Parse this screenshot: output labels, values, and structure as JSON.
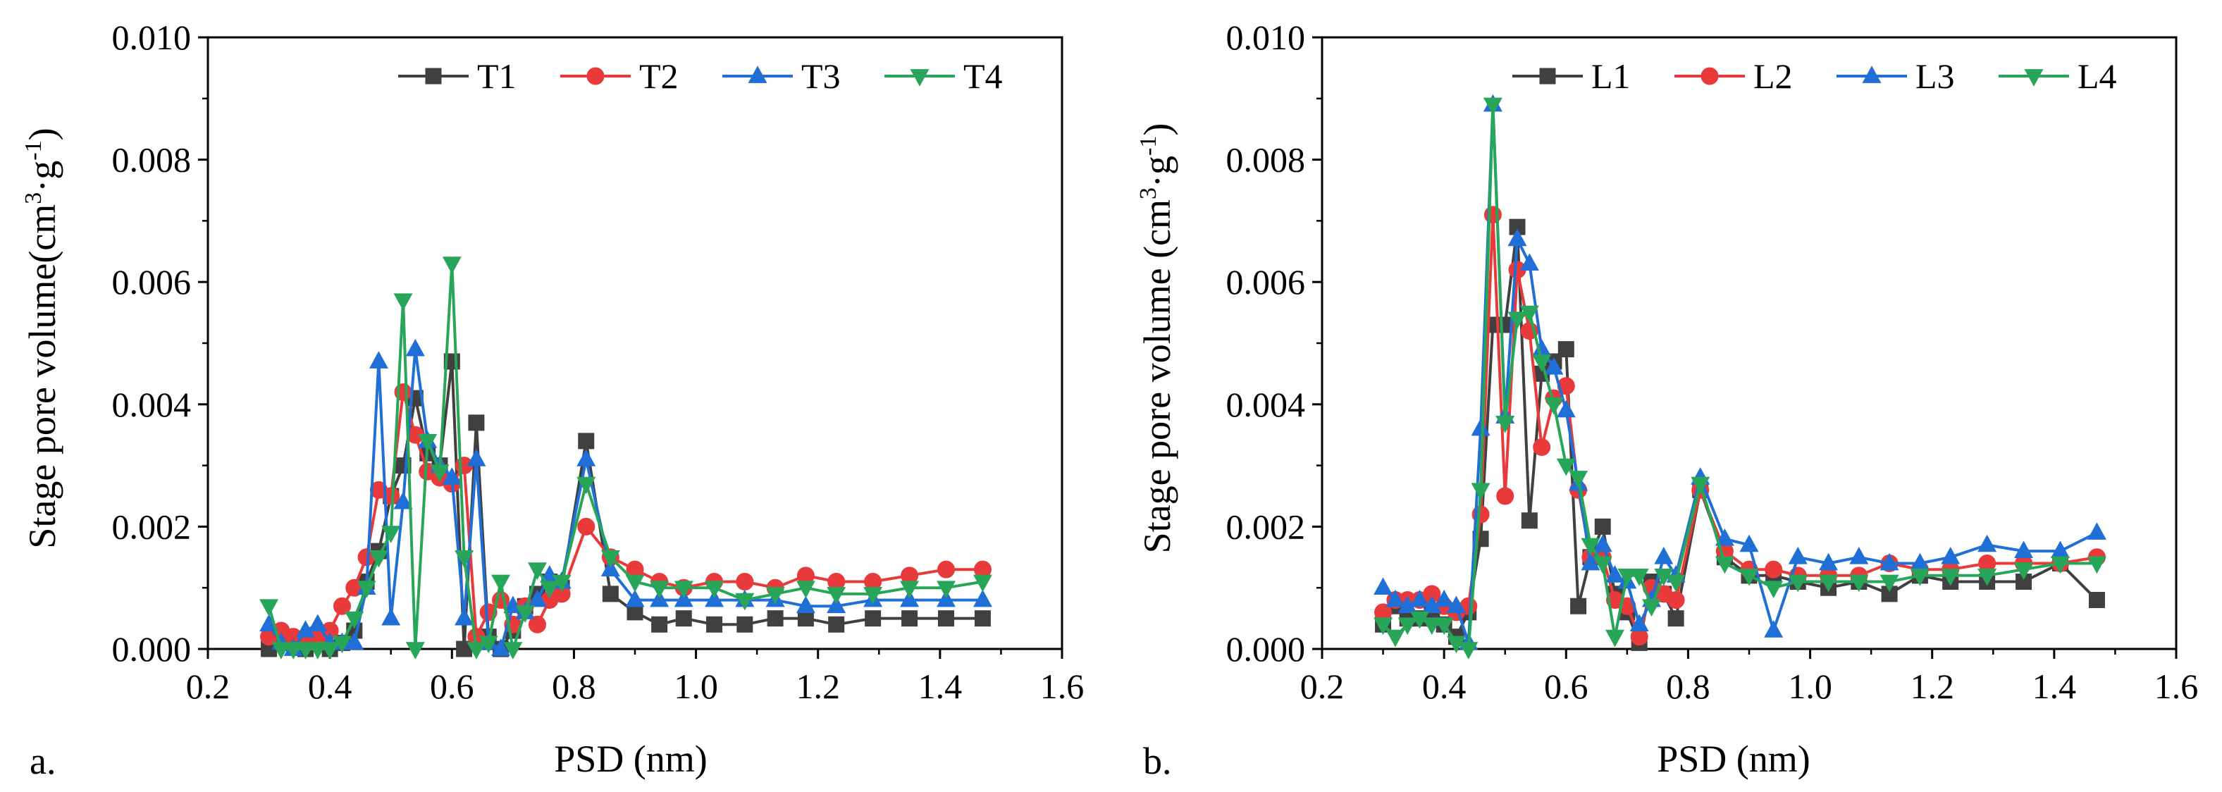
{
  "figure_labels": {
    "a": "a.",
    "b": "b."
  },
  "colors": {
    "s1": "#404040",
    "s2": "#e83a3a",
    "s3": "#1f6fd6",
    "s4": "#27a65a"
  },
  "chart_data": [
    {
      "type": "line",
      "panel": "a.",
      "title": "",
      "xlabel": "PSD (nm)",
      "ylabel_main": "Stage pore volume(cm",
      "ylabel_sup1": "3",
      "ylabel_mid": "·g",
      "ylabel_sup2": "-1",
      "ylabel_end": ")",
      "xlim": [
        0.2,
        1.6
      ],
      "ylim": [
        0,
        0.01
      ],
      "xticks": [
        0.2,
        0.4,
        0.6,
        0.8,
        1.0,
        1.2,
        1.4,
        1.6
      ],
      "xtick_labels": [
        "0.2",
        "0.4",
        "0.6",
        "0.8",
        "1.0",
        "1.2",
        "1.4",
        "1.6"
      ],
      "yticks": [
        0,
        0.002,
        0.004,
        0.006,
        0.008,
        0.01
      ],
      "ytick_labels": [
        "0.000",
        "0.002",
        "0.004",
        "0.006",
        "0.008",
        "0.010"
      ],
      "legend_position": "top-right",
      "series": [
        {
          "name": "T1",
          "marker": "square",
          "color": "#404040",
          "x": [
            0.3,
            0.32,
            0.34,
            0.36,
            0.38,
            0.4,
            0.42,
            0.44,
            0.46,
            0.48,
            0.5,
            0.52,
            0.54,
            0.56,
            0.58,
            0.6,
            0.62,
            0.64,
            0.66,
            0.68,
            0.7,
            0.72,
            0.74,
            0.76,
            0.78,
            0.82,
            0.86,
            0.9,
            0.94,
            0.98,
            1.03,
            1.08,
            1.13,
            1.18,
            1.23,
            1.29,
            1.35,
            1.41,
            1.47
          ],
          "y": [
            0.0,
            0.0002,
            0.0001,
            0.0,
            0.0001,
            0.0,
            0.0001,
            0.0003,
            0.0011,
            0.0016,
            0.0025,
            0.003,
            0.0041,
            0.0032,
            0.003,
            0.0047,
            0.0,
            0.0037,
            0.0002,
            0.0,
            0.0003,
            0.0007,
            0.0009,
            0.0011,
            0.001,
            0.0034,
            0.0009,
            0.0006,
            0.0004,
            0.0005,
            0.0004,
            0.0004,
            0.0005,
            0.0005,
            0.0004,
            0.0005,
            0.0005,
            0.0005,
            0.0005
          ]
        },
        {
          "name": "T2",
          "marker": "circle",
          "color": "#e83a3a",
          "x": [
            0.3,
            0.32,
            0.34,
            0.36,
            0.38,
            0.4,
            0.42,
            0.44,
            0.46,
            0.48,
            0.5,
            0.52,
            0.54,
            0.56,
            0.58,
            0.6,
            0.62,
            0.64,
            0.66,
            0.68,
            0.7,
            0.72,
            0.74,
            0.76,
            0.78,
            0.82,
            0.86,
            0.9,
            0.94,
            0.98,
            1.03,
            1.08,
            1.13,
            1.18,
            1.23,
            1.29,
            1.35,
            1.41,
            1.47
          ],
          "y": [
            0.0002,
            0.0003,
            0.0002,
            0.0001,
            0.0002,
            0.0003,
            0.0007,
            0.001,
            0.0015,
            0.0026,
            0.0025,
            0.0042,
            0.0035,
            0.0029,
            0.0028,
            0.0027,
            0.003,
            0.0002,
            0.0006,
            0.0008,
            0.0004,
            0.0007,
            0.0004,
            0.0008,
            0.0009,
            0.002,
            0.0015,
            0.0013,
            0.0011,
            0.001,
            0.0011,
            0.0011,
            0.001,
            0.0012,
            0.0011,
            0.0011,
            0.0012,
            0.0013,
            0.0013
          ]
        },
        {
          "name": "T3",
          "marker": "triangle-up",
          "color": "#1f6fd6",
          "x": [
            0.3,
            0.32,
            0.34,
            0.36,
            0.38,
            0.4,
            0.42,
            0.44,
            0.46,
            0.48,
            0.5,
            0.52,
            0.54,
            0.56,
            0.58,
            0.6,
            0.62,
            0.64,
            0.66,
            0.68,
            0.7,
            0.72,
            0.74,
            0.76,
            0.78,
            0.82,
            0.86,
            0.9,
            0.94,
            0.98,
            1.03,
            1.08,
            1.13,
            1.18,
            1.23,
            1.29,
            1.35,
            1.41,
            1.47
          ],
          "y": [
            0.0004,
            0.0001,
            0.0,
            0.0003,
            0.0004,
            0.0001,
            0.0001,
            0.0001,
            0.001,
            0.0047,
            0.0005,
            0.0024,
            0.0049,
            0.0034,
            0.003,
            0.0028,
            0.0005,
            0.0031,
            0.0001,
            0.0,
            0.0007,
            0.0006,
            0.0008,
            0.0012,
            0.0011,
            0.0031,
            0.0013,
            0.0008,
            0.0008,
            0.0008,
            0.0008,
            0.0008,
            0.0008,
            0.0007,
            0.0007,
            0.0008,
            0.0008,
            0.0008,
            0.0008
          ]
        },
        {
          "name": "T4",
          "marker": "triangle-down",
          "color": "#27a65a",
          "x": [
            0.3,
            0.32,
            0.34,
            0.36,
            0.38,
            0.4,
            0.42,
            0.44,
            0.46,
            0.48,
            0.5,
            0.52,
            0.54,
            0.56,
            0.58,
            0.6,
            0.62,
            0.64,
            0.66,
            0.68,
            0.7,
            0.72,
            0.74,
            0.76,
            0.78,
            0.82,
            0.86,
            0.9,
            0.94,
            0.98,
            1.03,
            1.08,
            1.13,
            1.18,
            1.23,
            1.29,
            1.35,
            1.41,
            1.47
          ],
          "y": [
            0.0007,
            0.0,
            0.0,
            0.0,
            0.0,
            0.0,
            0.0001,
            0.0005,
            0.001,
            0.0015,
            0.0019,
            0.0057,
            0.0,
            0.0034,
            0.0029,
            0.0063,
            0.0015,
            0.0,
            0.0001,
            0.0011,
            0.0,
            0.0006,
            0.0013,
            0.001,
            0.0011,
            0.0027,
            0.0015,
            0.0011,
            0.001,
            0.001,
            0.001,
            0.0008,
            0.0009,
            0.001,
            0.0009,
            0.0009,
            0.001,
            0.001,
            0.0011
          ]
        }
      ]
    },
    {
      "type": "line",
      "panel": "b.",
      "title": "",
      "xlabel": "PSD (nm)",
      "ylabel_main": "Stage pore volume (cm",
      "ylabel_sup1": "3",
      "ylabel_mid": "·g",
      "ylabel_sup2": "-1",
      "ylabel_end": ")",
      "xlim": [
        0.2,
        1.6
      ],
      "ylim": [
        0,
        0.01
      ],
      "xticks": [
        0.2,
        0.4,
        0.6,
        0.8,
        1.0,
        1.2,
        1.4,
        1.6
      ],
      "xtick_labels": [
        "0.2",
        "0.4",
        "0.6",
        "0.8",
        "1.0",
        "1.2",
        "1.4",
        "1.6"
      ],
      "yticks": [
        0,
        0.002,
        0.004,
        0.006,
        0.008,
        0.01
      ],
      "ytick_labels": [
        "0.000",
        "0.002",
        "0.004",
        "0.006",
        "0.008",
        "0.010"
      ],
      "legend_position": "top-right",
      "series": [
        {
          "name": "L1",
          "marker": "square",
          "color": "#404040",
          "x": [
            0.3,
            0.32,
            0.34,
            0.36,
            0.38,
            0.4,
            0.42,
            0.44,
            0.46,
            0.48,
            0.5,
            0.52,
            0.54,
            0.56,
            0.58,
            0.6,
            0.62,
            0.64,
            0.66,
            0.68,
            0.7,
            0.72,
            0.74,
            0.76,
            0.78,
            0.82,
            0.86,
            0.9,
            0.94,
            0.98,
            1.03,
            1.08,
            1.13,
            1.18,
            1.23,
            1.29,
            1.35,
            1.41,
            1.47
          ],
          "y": [
            0.0004,
            0.0007,
            0.0005,
            0.0005,
            0.0006,
            0.0004,
            0.0002,
            0.0006,
            0.0018,
            0.0053,
            0.0053,
            0.0069,
            0.0021,
            0.0045,
            0.0047,
            0.0049,
            0.0007,
            0.0015,
            0.002,
            0.0009,
            0.0006,
            0.0001,
            0.0011,
            0.0009,
            0.0005,
            0.0026,
            0.0015,
            0.0012,
            0.0012,
            0.0011,
            0.001,
            0.0011,
            0.0009,
            0.0012,
            0.0011,
            0.0011,
            0.0011,
            0.0014,
            0.0008
          ]
        },
        {
          "name": "L2",
          "marker": "circle",
          "color": "#e83a3a",
          "x": [
            0.3,
            0.32,
            0.34,
            0.36,
            0.38,
            0.4,
            0.42,
            0.44,
            0.46,
            0.48,
            0.5,
            0.52,
            0.54,
            0.56,
            0.58,
            0.6,
            0.62,
            0.64,
            0.66,
            0.68,
            0.7,
            0.72,
            0.74,
            0.76,
            0.78,
            0.82,
            0.86,
            0.9,
            0.94,
            0.98,
            1.03,
            1.08,
            1.13,
            1.18,
            1.23,
            1.29,
            1.35,
            1.41,
            1.47
          ],
          "y": [
            0.0006,
            0.0008,
            0.0008,
            0.0008,
            0.0009,
            0.0007,
            0.0006,
            0.0007,
            0.0022,
            0.0071,
            0.0025,
            0.0062,
            0.0052,
            0.0033,
            0.0041,
            0.0043,
            0.0026,
            0.0015,
            0.0015,
            0.0008,
            0.0007,
            0.0002,
            0.001,
            0.0009,
            0.0008,
            0.0026,
            0.0016,
            0.0013,
            0.0013,
            0.0012,
            0.0012,
            0.0012,
            0.0014,
            0.0013,
            0.0013,
            0.0014,
            0.0014,
            0.0014,
            0.0015
          ]
        },
        {
          "name": "L3",
          "marker": "triangle-up",
          "color": "#1f6fd6",
          "x": [
            0.3,
            0.32,
            0.34,
            0.36,
            0.38,
            0.4,
            0.42,
            0.44,
            0.46,
            0.48,
            0.5,
            0.52,
            0.54,
            0.56,
            0.58,
            0.6,
            0.62,
            0.64,
            0.66,
            0.68,
            0.7,
            0.72,
            0.74,
            0.76,
            0.78,
            0.82,
            0.86,
            0.9,
            0.94,
            0.98,
            1.03,
            1.08,
            1.13,
            1.18,
            1.23,
            1.29,
            1.35,
            1.41,
            1.47
          ],
          "y": [
            0.001,
            0.0008,
            0.0007,
            0.0008,
            0.0007,
            0.0008,
            0.0007,
            0.0001,
            0.0036,
            0.0089,
            0.0038,
            0.0067,
            0.0063,
            0.0049,
            0.0046,
            0.0039,
            0.0027,
            0.0014,
            0.0017,
            0.0012,
            0.0011,
            0.0004,
            0.0008,
            0.0015,
            0.0012,
            0.0028,
            0.0018,
            0.0017,
            0.0003,
            0.0015,
            0.0014,
            0.0015,
            0.0014,
            0.0014,
            0.0015,
            0.0017,
            0.0016,
            0.0016,
            0.0019
          ]
        },
        {
          "name": "L4",
          "marker": "triangle-down",
          "color": "#27a65a",
          "x": [
            0.3,
            0.32,
            0.34,
            0.36,
            0.38,
            0.4,
            0.42,
            0.44,
            0.46,
            0.48,
            0.5,
            0.52,
            0.54,
            0.56,
            0.58,
            0.6,
            0.62,
            0.64,
            0.66,
            0.68,
            0.7,
            0.72,
            0.74,
            0.76,
            0.78,
            0.82,
            0.86,
            0.9,
            0.94,
            0.98,
            1.03,
            1.08,
            1.13,
            1.18,
            1.23,
            1.29,
            1.35,
            1.41,
            1.47
          ],
          "y": [
            0.0004,
            0.0002,
            0.0004,
            0.0005,
            0.0004,
            0.0004,
            0.0001,
            0.0,
            0.0026,
            0.0089,
            0.0037,
            0.0054,
            0.0055,
            0.0047,
            0.004,
            0.003,
            0.0028,
            0.0017,
            0.0014,
            0.0002,
            0.0012,
            0.0012,
            0.0007,
            0.0012,
            0.0011,
            0.0027,
            0.0014,
            0.0012,
            0.001,
            0.0011,
            0.0011,
            0.0011,
            0.0011,
            0.0012,
            0.0012,
            0.0012,
            0.0013,
            0.0014,
            0.0014
          ]
        }
      ]
    }
  ]
}
